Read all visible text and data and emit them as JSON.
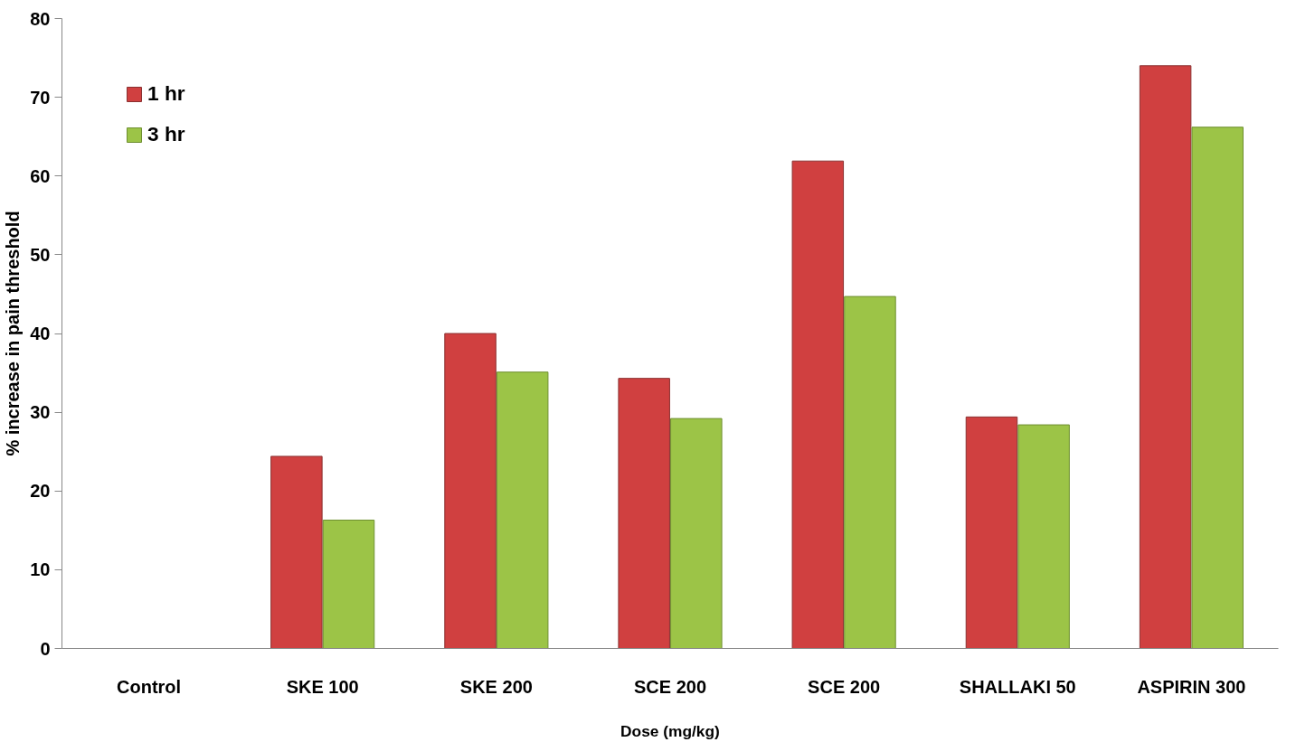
{
  "chart_data": {
    "type": "bar",
    "xlabel": "Dose (mg/kg)",
    "ylabel": "% increase in pain threshold",
    "categories": [
      "Control",
      "SKE 100",
      "SKE 200",
      "SCE 200",
      "SCE 200",
      "SHALLAKI 50",
      "ASPIRIN 300"
    ],
    "series": [
      {
        "name": "1 hr",
        "color": "#d04040",
        "values": [
          null,
          24.4,
          40.0,
          34.3,
          61.9,
          29.4,
          74.0
        ]
      },
      {
        "name": "3 hr",
        "color": "#9cc447",
        "values": [
          null,
          16.3,
          35.1,
          29.2,
          44.7,
          28.4,
          66.2
        ]
      }
    ],
    "ylim": [
      0,
      80
    ],
    "yticks": [
      0,
      10,
      20,
      30,
      40,
      50,
      60,
      70,
      80
    ],
    "grid": false,
    "legend": "top left"
  }
}
